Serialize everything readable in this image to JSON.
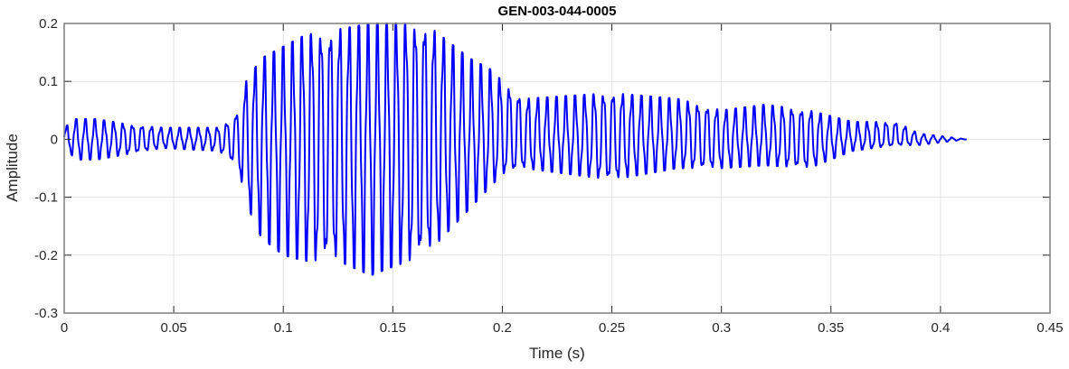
{
  "chart_data": {
    "type": "line",
    "title": "GEN-003-044-0005",
    "xlabel": "Time (s)",
    "ylabel": "Amplitude",
    "xlim": [
      0,
      0.45
    ],
    "ylim": [
      -0.3,
      0.2
    ],
    "grid": true,
    "x_ticks": [
      "0",
      "0.05",
      "0.1",
      "0.15",
      "0.2",
      "0.25",
      "0.3",
      "0.35",
      "0.4",
      "0.45"
    ],
    "y_ticks": [
      "-0.3",
      "-0.2",
      "-0.1",
      "0",
      "0.1",
      "0.2"
    ],
    "series": [
      {
        "color": "#0000ff",
        "representation": "oscillating waveform, peak envelope in data units",
        "cycle_period_s": 0.0043,
        "envelope": [
          {
            "t": 0.0,
            "upper": 0.02,
            "lower": -0.01
          },
          {
            "t": 0.005,
            "upper": 0.035,
            "lower": -0.035
          },
          {
            "t": 0.015,
            "upper": 0.035,
            "lower": -0.035
          },
          {
            "t": 0.03,
            "upper": 0.025,
            "lower": -0.025
          },
          {
            "t": 0.045,
            "upper": 0.02,
            "lower": -0.015
          },
          {
            "t": 0.07,
            "upper": 0.02,
            "lower": -0.02
          },
          {
            "t": 0.075,
            "upper": 0.03,
            "lower": -0.03
          },
          {
            "t": 0.08,
            "upper": 0.05,
            "lower": -0.06
          },
          {
            "t": 0.083,
            "upper": 0.1,
            "lower": -0.11
          },
          {
            "t": 0.09,
            "upper": 0.14,
            "lower": -0.17
          },
          {
            "t": 0.1,
            "upper": 0.16,
            "lower": -0.2
          },
          {
            "t": 0.11,
            "upper": 0.18,
            "lower": -0.21
          },
          {
            "t": 0.125,
            "upper": 0.19,
            "lower": -0.21
          },
          {
            "t": 0.14,
            "upper": 0.2,
            "lower": -0.235
          },
          {
            "t": 0.15,
            "upper": 0.2,
            "lower": -0.22
          },
          {
            "t": 0.165,
            "upper": 0.2,
            "lower": -0.2
          },
          {
            "t": 0.175,
            "upper": 0.17,
            "lower": -0.16
          },
          {
            "t": 0.185,
            "upper": 0.14,
            "lower": -0.12
          },
          {
            "t": 0.195,
            "upper": 0.12,
            "lower": -0.08
          },
          {
            "t": 0.2,
            "upper": 0.1,
            "lower": -0.06
          },
          {
            "t": 0.21,
            "upper": 0.07,
            "lower": -0.05
          },
          {
            "t": 0.25,
            "upper": 0.08,
            "lower": -0.07
          },
          {
            "t": 0.28,
            "upper": 0.07,
            "lower": -0.05
          },
          {
            "t": 0.3,
            "upper": 0.05,
            "lower": -0.05
          },
          {
            "t": 0.32,
            "upper": 0.06,
            "lower": -0.045
          },
          {
            "t": 0.34,
            "upper": 0.05,
            "lower": -0.05
          },
          {
            "t": 0.36,
            "upper": 0.03,
            "lower": -0.02
          },
          {
            "t": 0.38,
            "upper": 0.03,
            "lower": -0.01
          },
          {
            "t": 0.39,
            "upper": 0.01,
            "lower": -0.01
          },
          {
            "t": 0.412,
            "upper": 0.0,
            "lower": 0.0
          }
        ]
      }
    ]
  }
}
